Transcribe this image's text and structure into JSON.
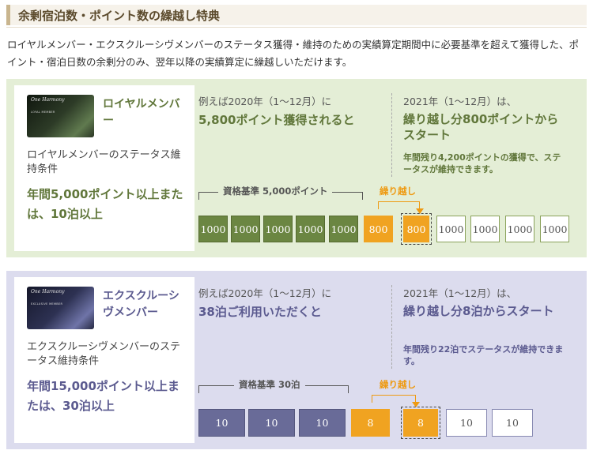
{
  "header": {
    "title": "余剰宿泊数・ポイント数の繰越し特典"
  },
  "intro": "ロイヤルメンバー・エクスクルーシヴメンバーのステータス獲得・維持のための実績算定期間中に必要基準を超えて獲得した、ポイント・宿泊日数の余剰分のみ、翌年以降の実績算定に繰越しいただけます。",
  "royal": {
    "card_logo": "One Harmony",
    "card_sub": "LOYAL MEMBER",
    "member_name": "ロイヤルメンバー",
    "condition_label": "ロイヤルメンバーのステータス維持条件",
    "requirement": "年間5,000ポイント以上または、10泊以上",
    "example_label": "例えば2020年（1〜12月）に",
    "example_main": "5,800ポイント獲得されると",
    "next_label": "2021年（1〜12月）は、",
    "next_main": "繰り越し分800ポイントからスタート",
    "next_sub": "年間残り4,200ポイントの獲得で、ステータスが維持できます。",
    "bracket_label": "資格基準 5,000ポイント",
    "carry_label": "繰り越し",
    "boxes_2020": [
      "1000",
      "1000",
      "1000",
      "1000",
      "1000"
    ],
    "surplus": "800",
    "carried": "800",
    "boxes_2021": [
      "1000",
      "1000",
      "1000",
      "1000"
    ]
  },
  "exclusive": {
    "card_logo": "One Harmony",
    "card_sub": "EXCLUSIVE MEMBER",
    "member_name": "エクスクルーシヴメンバー",
    "condition_label": "エクスクルーシヴメンバーのステータス維持条件",
    "requirement": "年間15,000ポイント以上または、30泊以上",
    "example_label": "例えば2020年（1〜12月）に",
    "example_main": "38泊ご利用いただくと",
    "next_label": "2021年（1〜12月）は、",
    "next_main": "繰り越し分8泊からスタート",
    "next_sub": "年間残り22泊でステータスが維持できます。",
    "bracket_label": "資格基準 30泊",
    "carry_label": "繰り越し",
    "boxes_2020": [
      "10",
      "10",
      "10"
    ],
    "surplus": "8",
    "carried": "8",
    "boxes_2021": [
      "10",
      "10"
    ]
  },
  "colors": {
    "royal_accent": "#61773b",
    "exclusive_accent": "#5b5a8f",
    "carry": "#f0a321"
  }
}
